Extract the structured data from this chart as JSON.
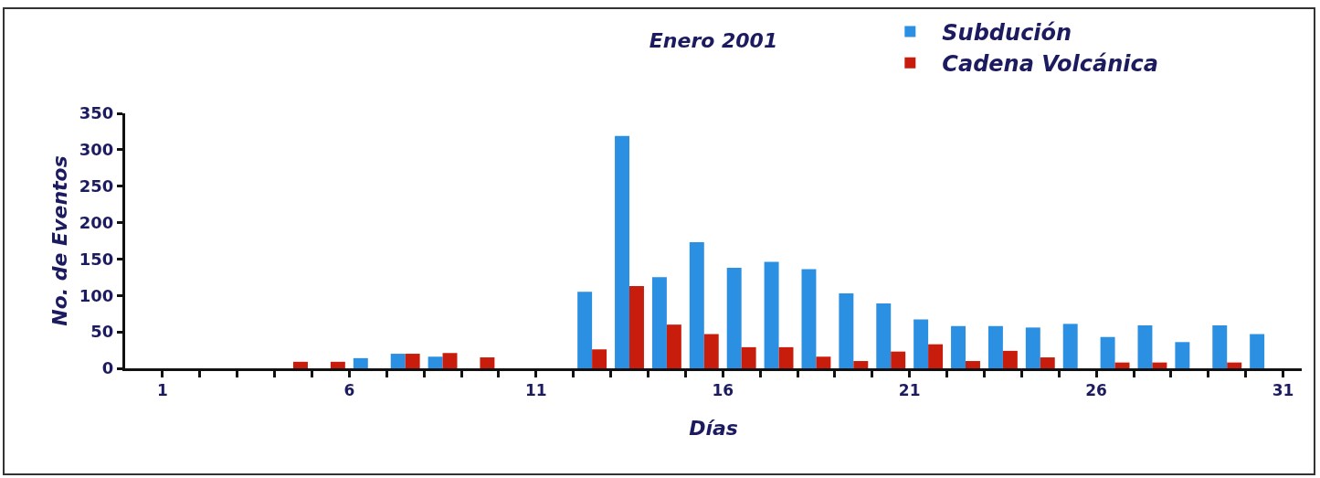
{
  "chart_data": {
    "type": "bar",
    "title": "Enero 2001",
    "xlabel": "Días",
    "ylabel": "No. de Eventos",
    "x": [
      1.5,
      2.5,
      3.5,
      4.5,
      5.5,
      6.5,
      7.5,
      8.5,
      9.5,
      10.5,
      11.5,
      12.5,
      13.5,
      14.5,
      15.5,
      16.5,
      17.5,
      18.5,
      19.5,
      20.5,
      21.5,
      22.5,
      23.5,
      24.5,
      25.5,
      26.5,
      27.5,
      28.5,
      29.5,
      30.5
    ],
    "series": [
      {
        "name": "Subdución",
        "color": "#2b8fe2",
        "values": [
          0,
          0,
          0,
          0,
          0,
          14,
          20,
          16,
          0,
          0,
          0,
          105,
          319,
          125,
          173,
          138,
          146,
          136,
          103,
          89,
          67,
          58,
          58,
          56,
          61,
          43,
          59,
          36,
          59,
          47
        ]
      },
      {
        "name": "Cadena Volcánica",
        "color": "#c81c0c",
        "values": [
          0,
          0,
          0,
          9,
          9,
          0,
          20,
          21,
          15,
          0,
          0,
          26,
          113,
          60,
          47,
          29,
          29,
          16,
          10,
          23,
          33,
          10,
          24,
          15,
          0,
          8,
          8,
          0,
          8,
          0
        ]
      }
    ],
    "xlim": [
      0,
      31.5
    ],
    "xticks": [
      1,
      {
        "value": 2,
        "label": null
      },
      {
        "value": 3,
        "label": null
      },
      {
        "value": 4,
        "label": null
      },
      {
        "value": 5,
        "label": null
      },
      6,
      {
        "value": 7,
        "label": null
      },
      {
        "value": 8,
        "label": null
      },
      {
        "value": 9,
        "label": null
      },
      {
        "value": 10,
        "label": null
      },
      11,
      {
        "value": 12,
        "label": null
      },
      {
        "value": 13,
        "label": null
      },
      {
        "value": 14,
        "label": null
      },
      {
        "value": 15,
        "label": null
      },
      16,
      {
        "value": 17,
        "label": null
      },
      {
        "value": 18,
        "label": null
      },
      {
        "value": 19,
        "label": null
      },
      {
        "value": 20,
        "label": null
      },
      21,
      {
        "value": 22,
        "label": null
      },
      {
        "value": 23,
        "label": null
      },
      {
        "value": 24,
        "label": null
      },
      {
        "value": 25,
        "label": null
      },
      26,
      {
        "value": 27,
        "label": null
      },
      {
        "value": 28,
        "label": null
      },
      {
        "value": 29,
        "label": null
      },
      {
        "value": 30,
        "label": null
      },
      31
    ],
    "ylim": [
      0,
      350
    ],
    "yticks": [
      0,
      50,
      100,
      150,
      200,
      250,
      300,
      350
    ],
    "grid": false,
    "legend": "top right"
  }
}
